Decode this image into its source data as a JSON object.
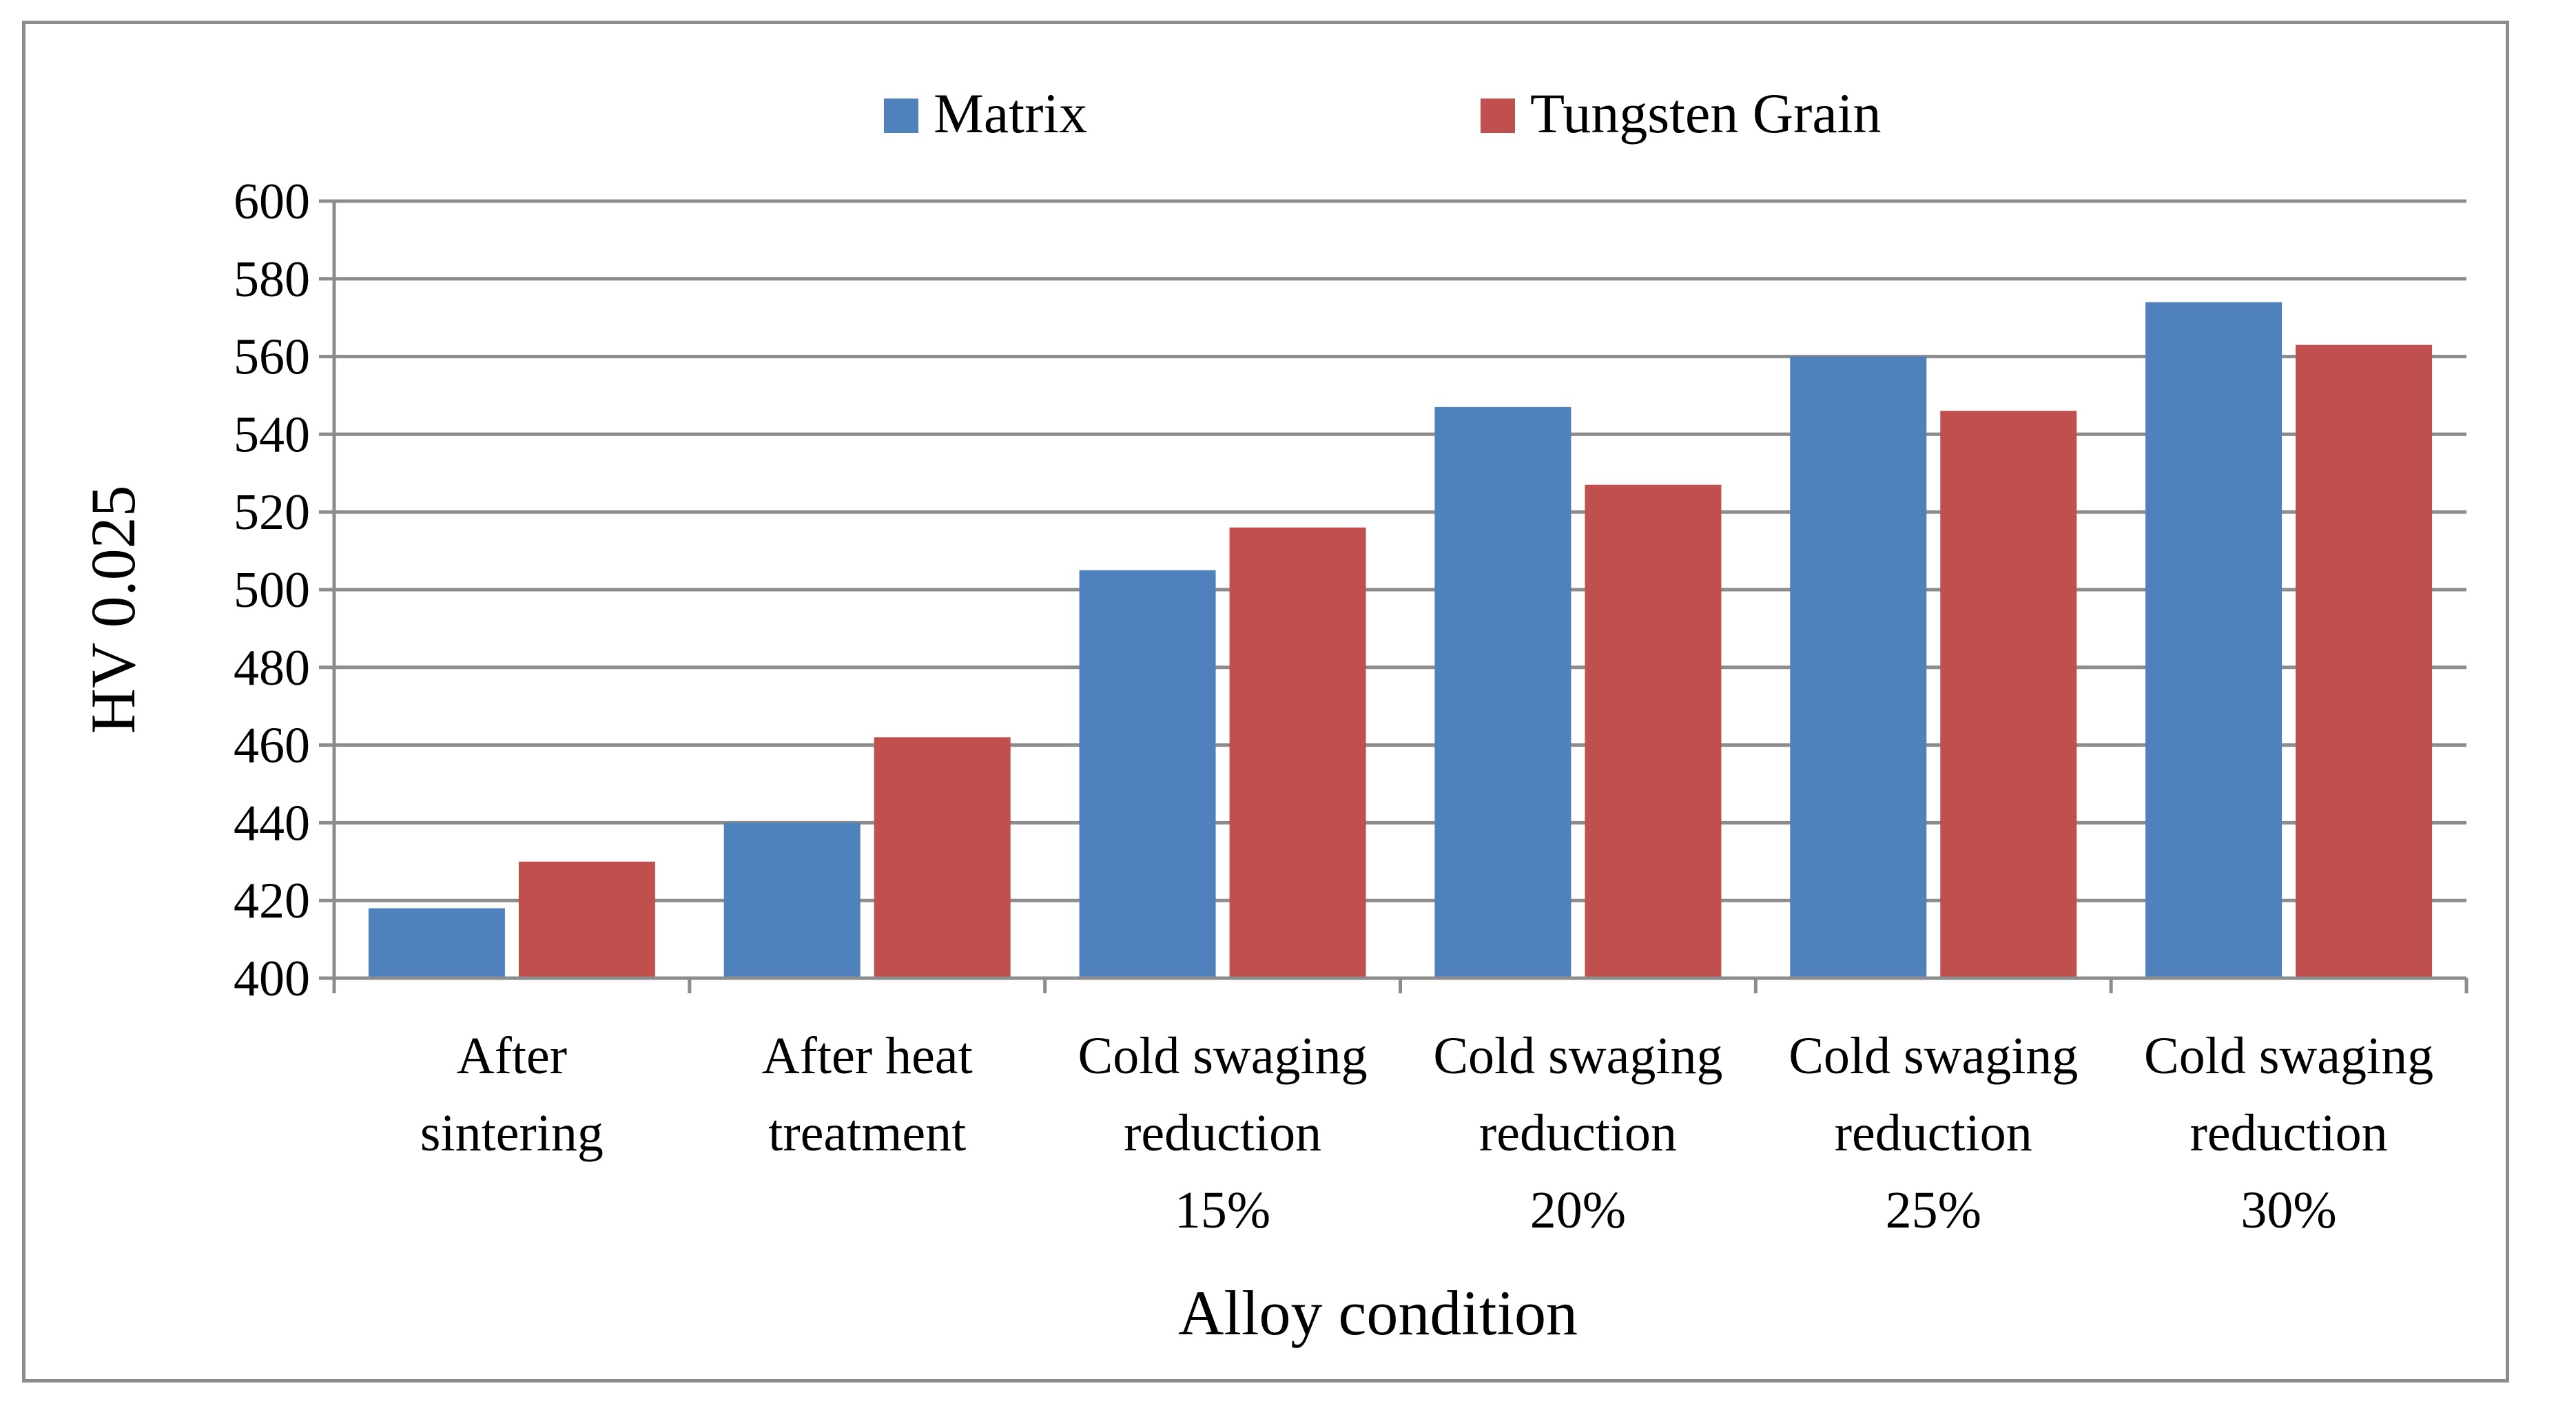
{
  "chart_data": {
    "type": "bar",
    "title": "",
    "xlabel": "Alloy condition",
    "ylabel": "HV 0.025",
    "ylim": [
      400,
      600
    ],
    "ytick_step": 20,
    "yticks": [
      "400",
      "420",
      "440",
      "460",
      "480",
      "500",
      "520",
      "540",
      "560",
      "580",
      "600"
    ],
    "grid": true,
    "legend_position": "top-center",
    "categories": [
      [
        "After",
        "sintering"
      ],
      [
        "After heat",
        "treatment"
      ],
      [
        "Cold swaging",
        "reduction",
        "15%"
      ],
      [
        "Cold swaging",
        "reduction",
        "20%"
      ],
      [
        "Cold swaging",
        "reduction",
        "25%"
      ],
      [
        "Cold swaging",
        "reduction",
        "30%"
      ]
    ],
    "series": [
      {
        "name": "Matrix",
        "color": "#4f81bd",
        "values": [
          418,
          440,
          505,
          547,
          560,
          574
        ]
      },
      {
        "name": "Tungsten Grain",
        "color": "#c0504d",
        "values": [
          430,
          462,
          516,
          527,
          546,
          563
        ]
      }
    ],
    "colors": {
      "grid": "#8c8c8c",
      "axis": "#8c8c8c",
      "frame": "#8c8c8c"
    }
  }
}
